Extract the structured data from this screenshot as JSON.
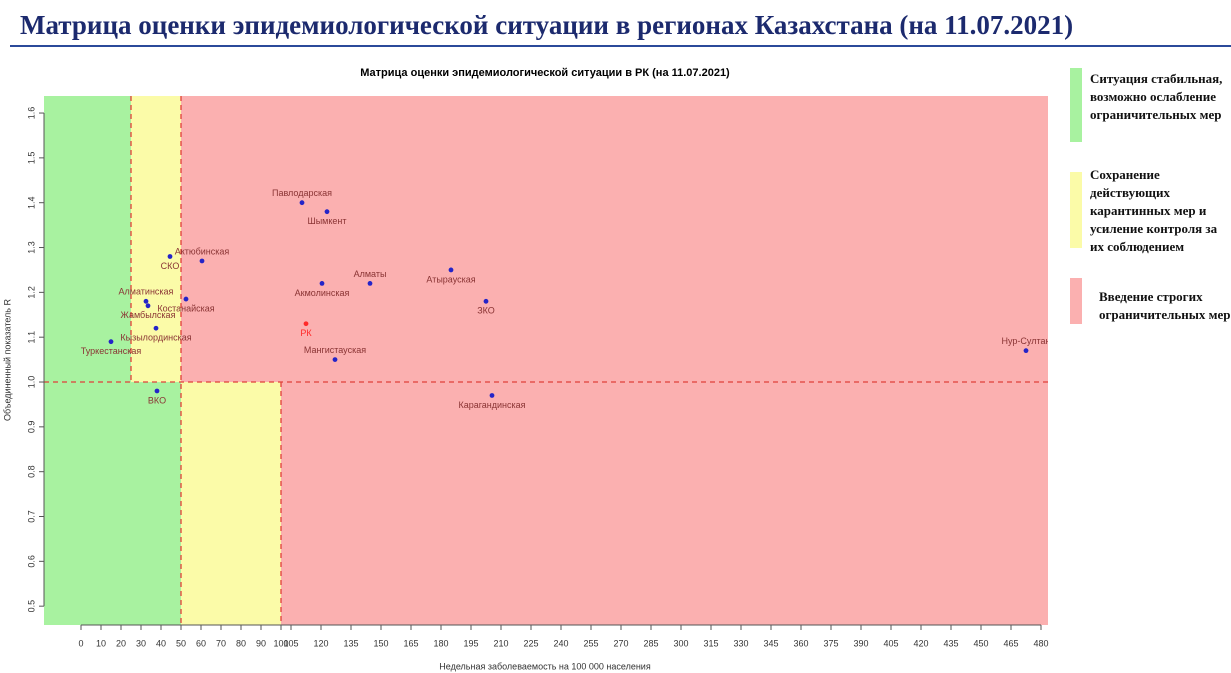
{
  "header": {
    "title": "Матрица оценки эпидемиологической ситуации в регионах Казахстана (на 11.07.2021)"
  },
  "chart_data": {
    "type": "scatter",
    "title": "Матрица оценки эпидемиологической ситуации в РК (на 11.07.2021)",
    "xlabel": "Недельная заболеваемость на 100 000 населения",
    "ylabel": "Объединенный показатель R",
    "xlim": [
      -18.5,
      483.5
    ],
    "ylim": [
      0.458,
      1.638
    ],
    "xticks": [
      0,
      10,
      20,
      30,
      40,
      50,
      60,
      70,
      80,
      90,
      100,
      105,
      120,
      135,
      150,
      165,
      180,
      195,
      210,
      225,
      240,
      255,
      270,
      285,
      300,
      315,
      330,
      345,
      360,
      375,
      390,
      405,
      420,
      435,
      450,
      465,
      480
    ],
    "yticks": [
      0.5,
      0.6,
      0.7,
      0.8,
      0.9,
      {
        "value": 1,
        "label": "1.0"
      },
      1.1,
      1.2,
      1.3,
      1.4,
      1.5,
      1.6
    ],
    "thresholds": {
      "x": [
        25,
        50,
        100
      ],
      "y": 1
    },
    "series": [
      {
        "color": "#2424c8",
        "labels": [
          "Павлодарская",
          "Шымкент",
          "Актюбинская",
          "СКО",
          "Алматы",
          "Атырауская",
          "Акмолинская",
          "Алматинская",
          "Жамбылская",
          "Костанайская",
          "ЗКО",
          "Кызылординская",
          "Туркестанская",
          "Мангистауская",
          "Нур-Султан",
          "ВКО",
          "Карагандинская"
        ],
        "x": [
          110.5,
          123,
          60.5,
          44.5,
          144.5,
          185,
          120.5,
          32.5,
          33.5,
          52.5,
          202.5,
          37.5,
          15,
          127,
          472.5,
          38,
          205.5
        ],
        "values": [
          1.4,
          1.38,
          1.27,
          1.28,
          1.22,
          1.25,
          1.22,
          1.18,
          1.17,
          1.185,
          1.18,
          1.12,
          1.09,
          1.05,
          1.07,
          0.98,
          0.97
        ]
      },
      {
        "color": "#ff2a2a",
        "labels": [
          "РК"
        ],
        "x": [
          112.5
        ],
        "values": [
          1.13
        ]
      }
    ],
    "legend": [
      {
        "label": "Ситуация стабильная, возможно ослабление ограничительных мер",
        "color": "#a8f2a0"
      },
      {
        "label": "Сохранение действующих карантинных мер и усиление контроля за их соблюдением",
        "color": "#fbfba8"
      },
      {
        "label": "Введение строгих ограничительных мер",
        "color": "#fbb0b0"
      }
    ]
  }
}
